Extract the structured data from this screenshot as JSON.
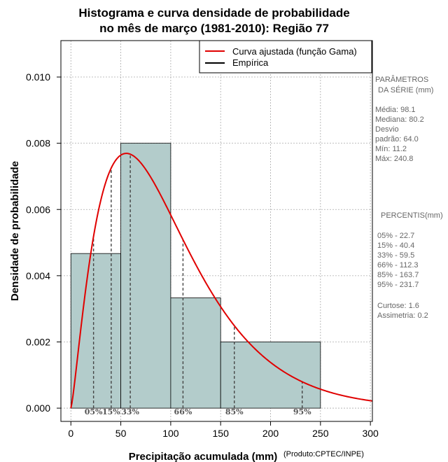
{
  "chart_data": {
    "type": "bar",
    "title_lines": [
      "Histograma e curva densidade de probabilidade",
      "no mês de março (1981-2010): Região 77"
    ],
    "xlabel": "Precipitação acumulada (mm)",
    "ylabel": "Densidade de probabilidade",
    "credit": "(Produto:CPTEC/INPE)",
    "xlim": [
      -10,
      302
    ],
    "ylim": [
      -0.0004,
      0.0111
    ],
    "x_ticks": [
      0,
      50,
      100,
      150,
      200,
      250,
      300
    ],
    "y_ticks": [
      0.0,
      0.002,
      0.004,
      0.006,
      0.008,
      0.01
    ],
    "y_tick_labels": [
      "0.000",
      "0.002",
      "0.004",
      "0.006",
      "0.008",
      "0.010"
    ],
    "grid": true,
    "bars": [
      {
        "x0": 0,
        "x1": 50,
        "value": 0.00467
      },
      {
        "x0": 50,
        "x1": 100,
        "value": 0.008
      },
      {
        "x0": 100,
        "x1": 150,
        "value": 0.00333
      },
      {
        "x0": 150,
        "x1": 250,
        "value": 0.002
      }
    ],
    "gamma_fit": {
      "shape": 2.3,
      "scale": 42.7,
      "x_max": 302
    },
    "legend": {
      "position": "top-right",
      "entries": [
        {
          "label": "Curva ajustada (função Gama)",
          "color": "#e00000"
        },
        {
          "label": "Empírica",
          "color": "#000000"
        }
      ]
    },
    "percentiles": [
      {
        "label": "05%",
        "x": 22.7
      },
      {
        "label": "15%",
        "x": 40.4
      },
      {
        "label": "33%",
        "x": 59.5
      },
      {
        "label": "66%",
        "x": 112.3
      },
      {
        "label": "85%",
        "x": 163.7
      },
      {
        "label": "95%",
        "x": 231.7
      }
    ],
    "colors": {
      "bar_fill": "#b3cccb",
      "curve": "#e00000",
      "grid": "#aaaaaa",
      "percentile_line": "#444444"
    }
  },
  "side_panel": {
    "params_title": [
      "PARÂMETROS",
      "DA SÉRIE (mm)"
    ],
    "params": [
      "Média:  98.1",
      "Mediana:  80.2",
      "Desvio",
      "padrão:  64.0",
      "Mín:  11.2",
      "Máx:  240.8"
    ],
    "percentis_title": "PERCENTIS(mm)",
    "percentis": [
      "05% -  22.7",
      "15% -  40.4",
      "33% -  59.5",
      "66% -  112.3",
      "85% -  163.7",
      "95% -  231.7"
    ],
    "extra": [
      "Curtose:  1.6",
      "Assimetria:  0.2"
    ]
  }
}
